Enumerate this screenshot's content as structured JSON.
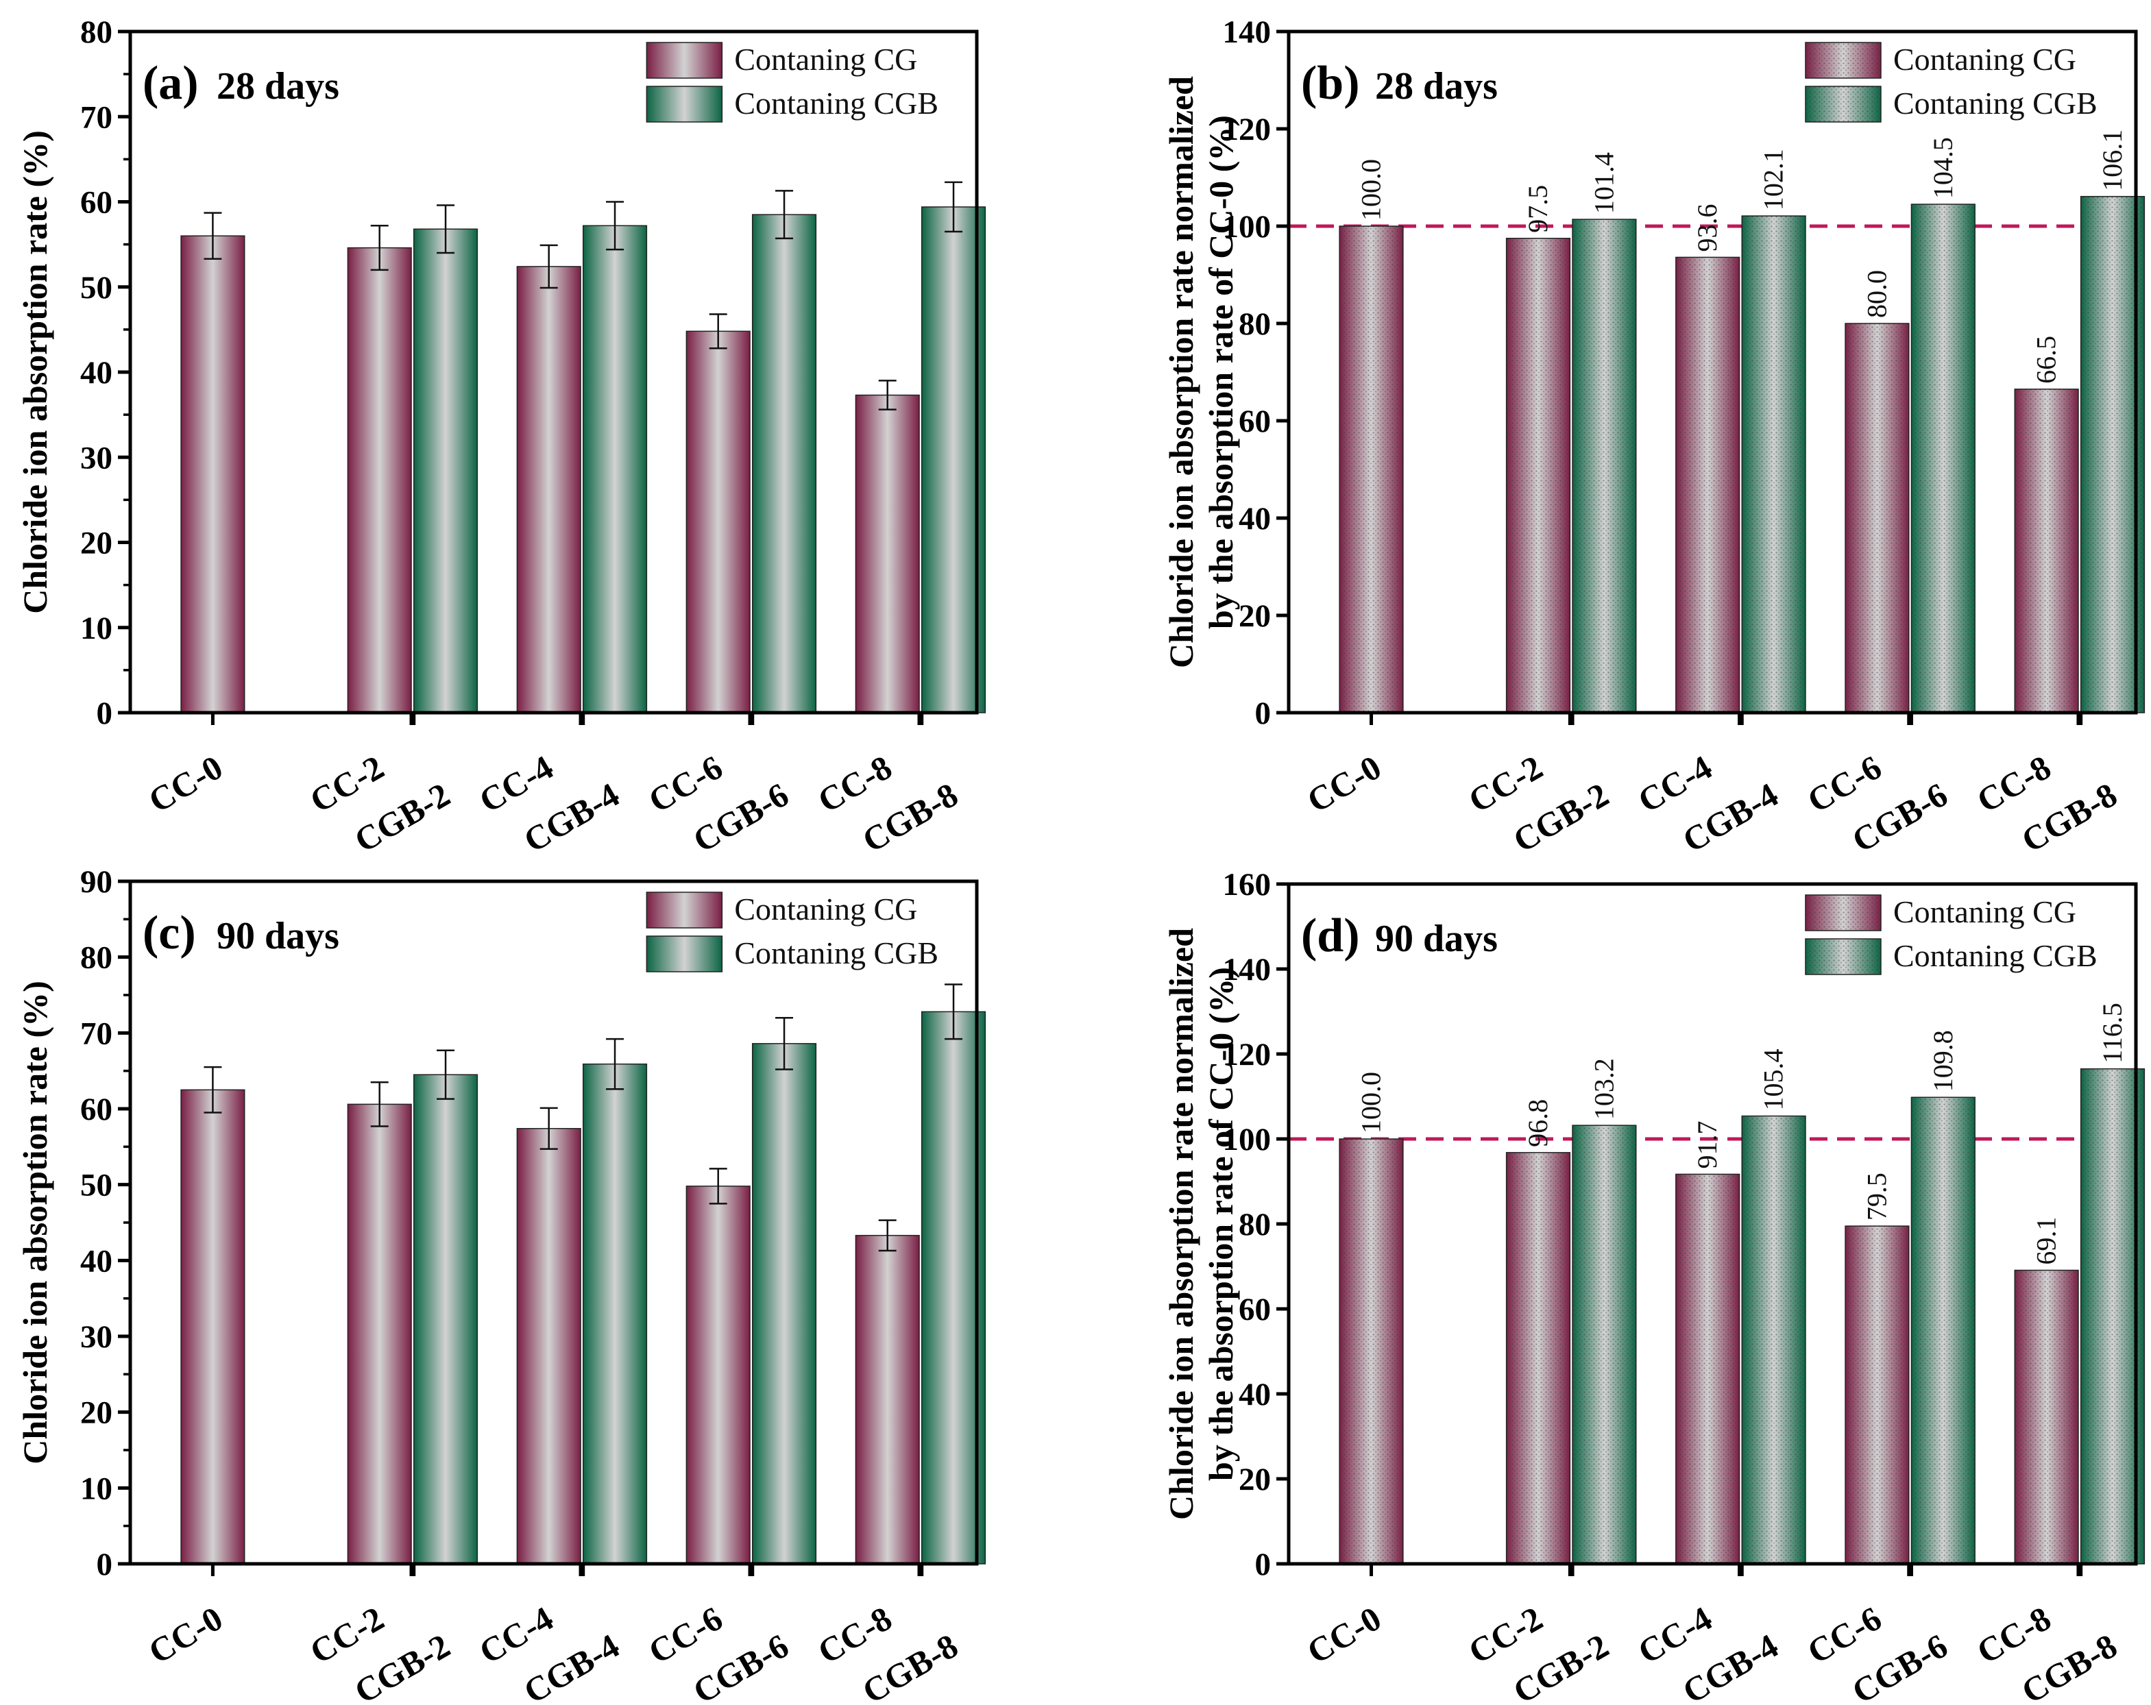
{
  "figure": {
    "colors": {
      "cg": "#7a1f45",
      "cgb": "#0c6545",
      "mid": "#c8c8c8",
      "ref_line": "#c0185a",
      "axis": "#000000"
    }
  },
  "chart_data": [
    {
      "id": "a",
      "type": "bar",
      "panel_label": "(a)",
      "title": "28 days",
      "ylabel": "Chloride ion absorption rate (%)",
      "xlabel": "",
      "ylim": [
        0,
        80
      ],
      "ytick_step": 10,
      "minor_ticks": true,
      "normalized": false,
      "legend": [
        "Contaning CG",
        "Contaning CGB"
      ],
      "legend_position": "top-right",
      "grid": false,
      "categories": [
        "CC-0",
        "CC-2",
        "CGB-2",
        "CC-4",
        "CGB-4",
        "CC-6",
        "CGB-6",
        "CC-8",
        "CGB-8"
      ],
      "bar_series": [
        "cg",
        "cg",
        "cgb",
        "cg",
        "cgb",
        "cg",
        "cgb",
        "cg",
        "cgb"
      ],
      "values": [
        56.0,
        54.6,
        56.8,
        52.4,
        57.2,
        44.8,
        58.5,
        37.3,
        59.4
      ],
      "errors": [
        2.7,
        2.6,
        2.8,
        2.5,
        2.8,
        2.0,
        2.8,
        1.7,
        2.9
      ],
      "data_labels": null,
      "reference_line": null
    },
    {
      "id": "b",
      "type": "bar",
      "panel_label": "(b)",
      "title": "28 days",
      "ylabel": [
        "Chloride ion absorption rate normalized",
        "by the absorption rate of CC-0 (%)"
      ],
      "xlabel": "",
      "ylim": [
        0,
        140
      ],
      "ytick_step": 20,
      "minor_ticks": false,
      "normalized": true,
      "legend": [
        "Contaning CG",
        "Contaning CGB"
      ],
      "legend_position": "top-right",
      "grid": false,
      "categories": [
        "CC-0",
        "CC-2",
        "CGB-2",
        "CC-4",
        "CGB-4",
        "CC-6",
        "CGB-6",
        "CC-8",
        "CGB-8"
      ],
      "bar_series": [
        "cg",
        "cg",
        "cgb",
        "cg",
        "cgb",
        "cg",
        "cgb",
        "cg",
        "cgb"
      ],
      "values": [
        100.0,
        97.5,
        101.4,
        93.6,
        102.1,
        80.0,
        104.5,
        66.5,
        106.1
      ],
      "errors": null,
      "data_labels": [
        "100.0",
        "97.5",
        "101.4",
        "93.6",
        "102.1",
        "80.0",
        "104.5",
        "66.5",
        "106.1"
      ],
      "reference_line": 100
    },
    {
      "id": "c",
      "type": "bar",
      "panel_label": "(c)",
      "title": "90 days",
      "ylabel": "Chloride ion absorption rate (%)",
      "xlabel": "",
      "ylim": [
        0,
        90
      ],
      "ytick_step": 10,
      "minor_ticks": true,
      "normalized": false,
      "legend": [
        "Contaning CG",
        "Contaning CGB"
      ],
      "legend_position": "top-right",
      "grid": false,
      "categories": [
        "CC-0",
        "CC-2",
        "CGB-2",
        "CC-4",
        "CGB-4",
        "CC-6",
        "CGB-6",
        "CC-8",
        "CGB-8"
      ],
      "bar_series": [
        "cg",
        "cg",
        "cgb",
        "cg",
        "cgb",
        "cg",
        "cgb",
        "cg",
        "cgb"
      ],
      "values": [
        62.5,
        60.6,
        64.5,
        57.4,
        65.9,
        49.8,
        68.6,
        43.3,
        72.8
      ],
      "errors": [
        3.0,
        2.9,
        3.2,
        2.7,
        3.3,
        2.3,
        3.4,
        2.0,
        3.6
      ],
      "data_labels": null,
      "reference_line": null
    },
    {
      "id": "d",
      "type": "bar",
      "panel_label": "(d)",
      "title": "90 days",
      "ylabel": [
        "Chloride ion absorption rate normalized",
        "by the absorption rate of CC-0 (%)"
      ],
      "xlabel": "",
      "ylim": [
        0,
        160
      ],
      "ytick_step": 20,
      "minor_ticks": false,
      "normalized": true,
      "legend": [
        "Contaning CG",
        "Contaning CGB"
      ],
      "legend_position": "top-right",
      "grid": false,
      "categories": [
        "CC-0",
        "CC-2",
        "CGB-2",
        "CC-4",
        "CGB-4",
        "CC-6",
        "CGB-6",
        "CC-8",
        "CGB-8"
      ],
      "bar_series": [
        "cg",
        "cg",
        "cgb",
        "cg",
        "cgb",
        "cg",
        "cgb",
        "cg",
        "cgb"
      ],
      "values": [
        100.0,
        96.8,
        103.2,
        91.7,
        105.4,
        79.5,
        109.8,
        69.1,
        116.5
      ],
      "errors": null,
      "data_labels": [
        "100.0",
        "96.8",
        "103.2",
        "91.7",
        "105.4",
        "79.5",
        "109.8",
        "69.1",
        "116.5"
      ],
      "reference_line": 100
    }
  ]
}
